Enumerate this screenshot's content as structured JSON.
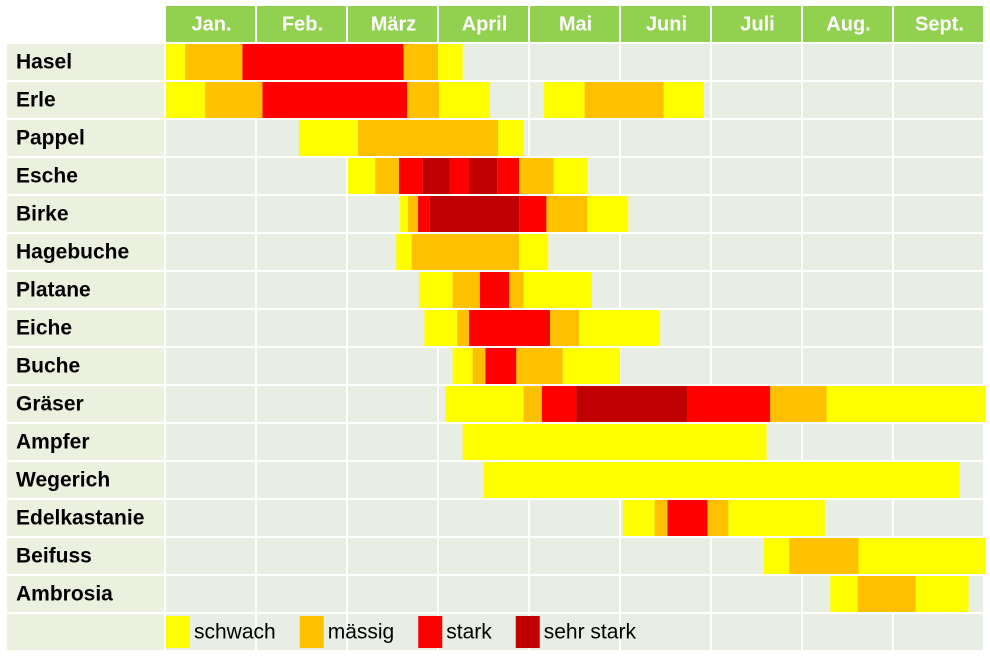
{
  "chart_data": {
    "type": "gantt",
    "categories": [
      "Jan.",
      "Feb.",
      "März",
      "April",
      "Mai",
      "Juni",
      "Juli",
      "Aug.",
      "Sept."
    ],
    "xlim": [
      0,
      9
    ],
    "header_color": "#92d050",
    "levels": [
      {
        "name": "schwach",
        "color": "#ffff00"
      },
      {
        "name": "mässig",
        "color": "#ffc000"
      },
      {
        "name": "stark",
        "color": "#ff0000"
      },
      {
        "name": "sehr stark",
        "color": "#c00000"
      }
    ],
    "rows": [
      {
        "name": "Hasel",
        "segments": [
          [
            0,
            0.21,
            0
          ],
          [
            0.21,
            0.84,
            1
          ],
          [
            0.84,
            2.61,
            2
          ],
          [
            2.61,
            2.99,
            1
          ],
          [
            2.99,
            3.26,
            0
          ]
        ]
      },
      {
        "name": "Erle",
        "segments": [
          [
            0,
            0.43,
            0
          ],
          [
            0.43,
            1.06,
            1
          ],
          [
            1.06,
            2.65,
            2
          ],
          [
            2.65,
            3.0,
            1
          ],
          [
            3.0,
            3.56,
            0
          ],
          [
            4.15,
            4.6,
            0
          ],
          [
            4.6,
            5.47,
            1
          ],
          [
            5.47,
            5.91,
            0
          ]
        ]
      },
      {
        "name": "Pappel",
        "segments": [
          [
            1.46,
            2.11,
            0
          ],
          [
            2.11,
            3.65,
            1
          ],
          [
            3.65,
            3.93,
            0
          ]
        ]
      },
      {
        "name": "Esche",
        "segments": [
          [
            2.0,
            2.3,
            0
          ],
          [
            2.3,
            2.56,
            1
          ],
          [
            2.56,
            2.82,
            2
          ],
          [
            2.82,
            3.12,
            3
          ],
          [
            3.12,
            3.33,
            2
          ],
          [
            3.33,
            3.64,
            3
          ],
          [
            3.64,
            3.88,
            2
          ],
          [
            3.88,
            4.26,
            1
          ],
          [
            4.26,
            4.63,
            0
          ]
        ]
      },
      {
        "name": "Birke",
        "segments": [
          [
            2.57,
            2.66,
            0
          ],
          [
            2.66,
            2.77,
            1
          ],
          [
            2.77,
            2.9,
            2
          ],
          [
            2.9,
            3.88,
            3
          ],
          [
            3.88,
            4.18,
            2
          ],
          [
            4.18,
            4.63,
            1
          ],
          [
            4.63,
            5.08,
            0
          ]
        ]
      },
      {
        "name": "Hagebuche",
        "segments": [
          [
            2.53,
            2.7,
            0
          ],
          [
            2.7,
            3.88,
            1
          ],
          [
            3.88,
            4.2,
            0
          ]
        ]
      },
      {
        "name": "Platane",
        "segments": [
          [
            2.78,
            3.15,
            0
          ],
          [
            3.15,
            3.45,
            1
          ],
          [
            3.45,
            3.77,
            2
          ],
          [
            3.77,
            3.93,
            1
          ],
          [
            3.93,
            4.68,
            0
          ]
        ]
      },
      {
        "name": "Eiche",
        "segments": [
          [
            2.84,
            3.2,
            0
          ],
          [
            3.2,
            3.33,
            1
          ],
          [
            3.33,
            4.22,
            2
          ],
          [
            4.22,
            4.54,
            1
          ],
          [
            4.54,
            5.43,
            0
          ]
        ]
      },
      {
        "name": "Buche",
        "segments": [
          [
            3.15,
            3.37,
            0
          ],
          [
            3.37,
            3.51,
            1
          ],
          [
            3.51,
            3.85,
            2
          ],
          [
            3.85,
            4.36,
            1
          ],
          [
            4.36,
            4.99,
            0
          ]
        ]
      },
      {
        "name": "Gräser",
        "segments": [
          [
            3.07,
            3.93,
            0
          ],
          [
            3.93,
            4.13,
            1
          ],
          [
            4.13,
            4.51,
            2
          ],
          [
            4.51,
            5.73,
            3
          ],
          [
            5.73,
            6.64,
            2
          ],
          [
            6.64,
            7.26,
            1
          ],
          [
            7.26,
            9.0,
            0
          ]
        ]
      },
      {
        "name": "Ampfer",
        "segments": [
          [
            3.26,
            6.6,
            0
          ]
        ]
      },
      {
        "name": "Wegerich",
        "segments": [
          [
            3.49,
            8.72,
            0
          ]
        ]
      },
      {
        "name": "Edelkastanie",
        "segments": [
          [
            5.02,
            5.37,
            0
          ],
          [
            5.37,
            5.51,
            1
          ],
          [
            5.51,
            5.95,
            2
          ],
          [
            5.95,
            6.18,
            1
          ],
          [
            6.18,
            7.24,
            0
          ]
        ]
      },
      {
        "name": "Beifuss",
        "segments": [
          [
            6.57,
            6.85,
            0
          ],
          [
            6.85,
            7.61,
            1
          ],
          [
            7.61,
            9.0,
            0
          ]
        ]
      },
      {
        "name": "Ambrosia",
        "segments": [
          [
            7.3,
            7.6,
            0
          ],
          [
            7.6,
            8.24,
            1
          ],
          [
            8.24,
            8.82,
            0
          ]
        ]
      }
    ]
  }
}
